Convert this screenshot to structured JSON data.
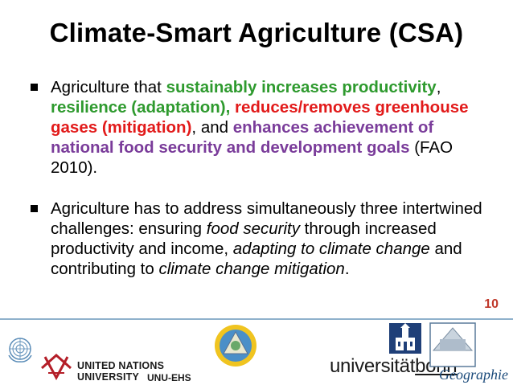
{
  "title": "Climate-Smart Agriculture (CSA)",
  "bullet1": {
    "p1": "Agriculture that ",
    "g1": "sustainably increases productivity",
    "p2": ", ",
    "g2": "resilience (adaptation),",
    "p3": " ",
    "r1": "reduces/removes greenhouse gases (mitigation)",
    "p4": ", and ",
    "pu1": "enhances achievement of national food security and development goals",
    "p5": " (FAO 2010)."
  },
  "bullet2": {
    "p1": "Agriculture has to address simultaneously three intertwined challenges: ensuring ",
    "i1": "food security",
    "p2": " through increased productivity and income, ",
    "i2": "adapting to climate change",
    "p3": " and contributing to ",
    "i3": "climate change mitigation",
    "p4": "."
  },
  "page_number": "10",
  "footer": {
    "unu_line1": "UNITED NATIONS",
    "unu_line2": "UNIVERSITY",
    "unu_ehs": "UNU-EHS",
    "bonn_part1": "universität",
    "bonn_part2": "bonn",
    "geo": "Geographie"
  },
  "colors": {
    "green": "#2e9a2e",
    "red": "#e21a1a",
    "purple": "#7a3c9a",
    "footer_rule": "#8fb1cc"
  },
  "icons": [
    "un-emblem-icon",
    "unu-logo-icon",
    "ehs-emblem-icon",
    "bonn-crest-icon",
    "geographie-logo-icon"
  ]
}
